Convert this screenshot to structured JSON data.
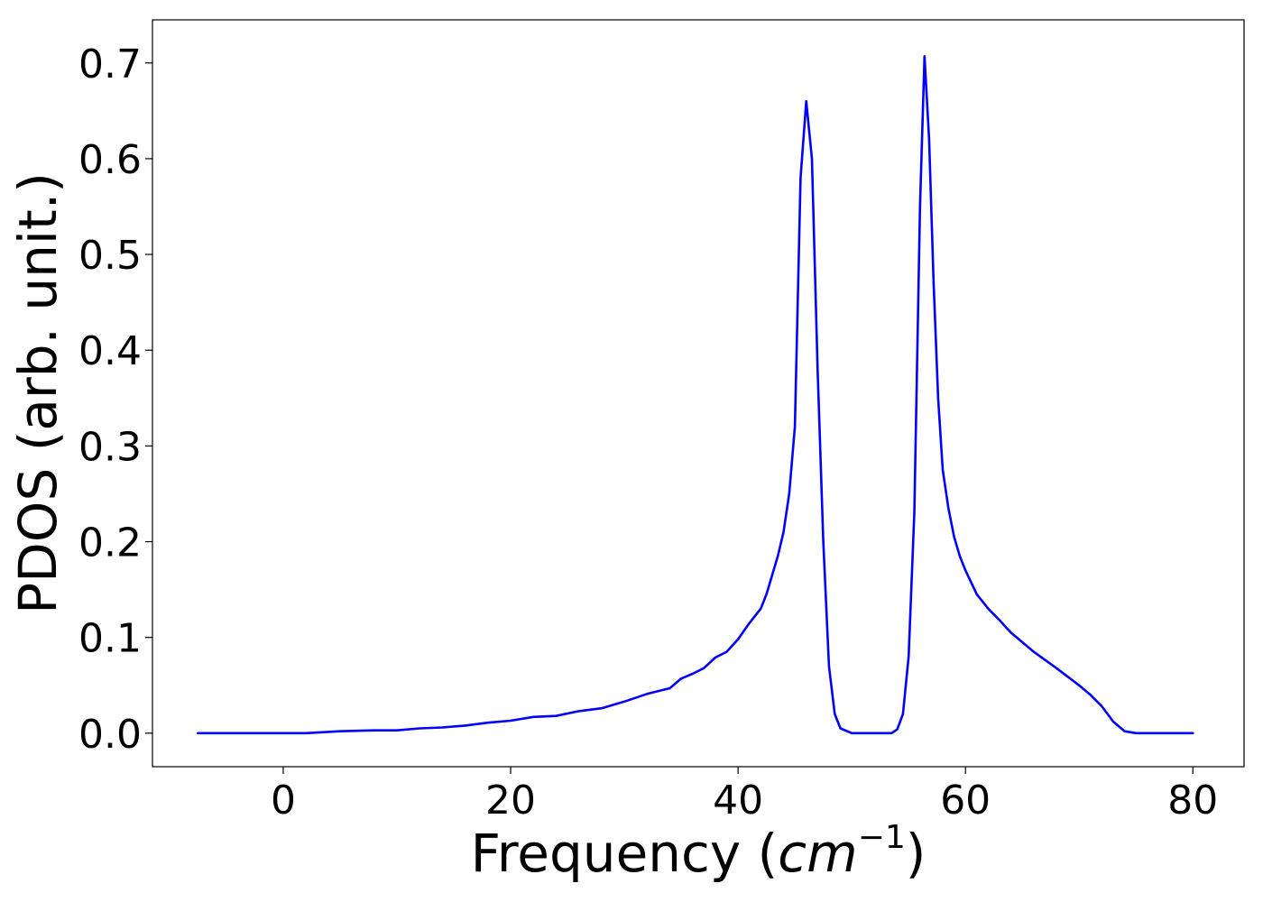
{
  "chart_data": {
    "type": "line",
    "title": "",
    "xlabel_prefix": "Frequency (",
    "xlabel_var": "cm",
    "xlabel_sup": "−1",
    "xlabel_suffix": ")",
    "ylabel": "PDOS (arb. unit.)",
    "xlim": [
      -11.5,
      84.5
    ],
    "ylim": [
      -0.035,
      0.745
    ],
    "xticks": [
      0,
      20,
      40,
      60,
      80
    ],
    "xtick_labels": [
      "0",
      "20",
      "40",
      "60",
      "80"
    ],
    "yticks": [
      0.0,
      0.1,
      0.2,
      0.3,
      0.4,
      0.5,
      0.6,
      0.7
    ],
    "ytick_labels": [
      "0.0",
      "0.1",
      "0.2",
      "0.3",
      "0.4",
      "0.5",
      "0.6",
      "0.7"
    ],
    "grid": false,
    "series": [
      {
        "color": "#0000ff",
        "x": [
          -7.5,
          2,
          5,
          8,
          10,
          12,
          14,
          16,
          18,
          20,
          22,
          24,
          26,
          28,
          30,
          32,
          34,
          35,
          36,
          37,
          38,
          39,
          40,
          41,
          42,
          42.5,
          43,
          43.5,
          44,
          44.5,
          45,
          45.5,
          46,
          46.5,
          47,
          47.5,
          48,
          48.5,
          49,
          50,
          52,
          53.5,
          54,
          54.5,
          55,
          55.5,
          56,
          56.4,
          56.8,
          57.2,
          57.6,
          58,
          58.5,
          59,
          59.5,
          60,
          61,
          62,
          63,
          64,
          66,
          68,
          70,
          71,
          72,
          73,
          74,
          75,
          78,
          80
        ],
        "y": [
          0.0,
          0.0,
          0.002,
          0.003,
          0.003,
          0.005,
          0.006,
          0.008,
          0.011,
          0.013,
          0.017,
          0.018,
          0.023,
          0.026,
          0.033,
          0.041,
          0.047,
          0.057,
          0.062,
          0.068,
          0.079,
          0.085,
          0.098,
          0.115,
          0.13,
          0.145,
          0.165,
          0.185,
          0.21,
          0.25,
          0.32,
          0.58,
          0.66,
          0.6,
          0.38,
          0.2,
          0.07,
          0.02,
          0.005,
          0.0,
          0.0,
          0.0,
          0.004,
          0.02,
          0.08,
          0.23,
          0.55,
          0.707,
          0.62,
          0.47,
          0.35,
          0.275,
          0.235,
          0.205,
          0.185,
          0.17,
          0.145,
          0.13,
          0.118,
          0.105,
          0.085,
          0.068,
          0.05,
          0.04,
          0.028,
          0.012,
          0.002,
          0.0,
          0.0,
          0.0
        ]
      }
    ]
  }
}
